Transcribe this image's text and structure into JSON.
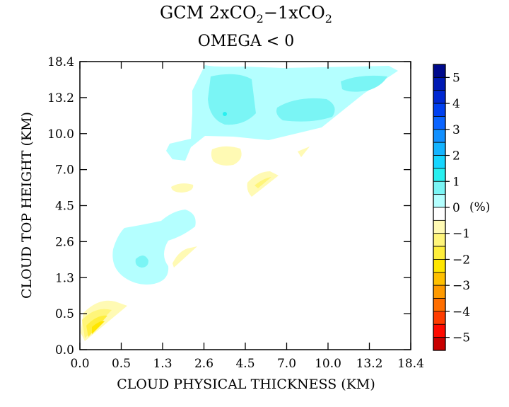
{
  "title_line1_main": "GCM 2xCO",
  "title_line1_sub1": "2",
  "title_line1_mid": "−1xCO",
  "title_line1_sub2": "2",
  "title_line2": "OMEGA < 0",
  "chart_data": {
    "type": "heatmap",
    "title": "GCM 2xCO2−1xCO2",
    "subtitle": "OMEGA < 0",
    "xlabel": "CLOUD PHYSICAL THICKNESS (KM)",
    "ylabel": "CLOUD TOP HEIGHT (KM)",
    "x_ticks": [
      "0.0",
      "0.5",
      "1.3",
      "2.6",
      "4.5",
      "7.0",
      "10.0",
      "13.2",
      "18.4"
    ],
    "y_ticks": [
      "0.0",
      "0.5",
      "1.3",
      "2.6",
      "4.5",
      "7.0",
      "10.0",
      "13.2",
      "18.4"
    ],
    "colorbar": {
      "unit": "(%)",
      "tick_labels": [
        "5",
        "4",
        "3",
        "2",
        "1",
        "0",
        "−1",
        "−2",
        "−3",
        "−4",
        "−5"
      ],
      "levels": [
        5,
        4.5,
        4,
        3.5,
        3,
        2.5,
        2,
        1.5,
        1,
        0.5,
        0,
        -0.5,
        -1,
        -1.5,
        -2,
        -2.5,
        -3,
        -3.5,
        -4,
        -4.5,
        -5
      ],
      "colors": [
        "#000a8c",
        "#001ab4",
        "#0028d2",
        "#0040f0",
        "#0a64ff",
        "#1290ff",
        "#14b4ff",
        "#16d6ff",
        "#28f0f0",
        "#7af5f5",
        "#b4ffff",
        "#ffffff",
        "#fffab4",
        "#fff57a",
        "#ffee3c",
        "#ffe600",
        "#ffc000",
        "#ff9a00",
        "#ff6e00",
        "#ff3c00",
        "#ff0a00",
        "#c80000"
      ]
    },
    "regions": [
      {
        "label": "upper cloud band",
        "value": 0.5,
        "color": "#b4ffff"
      },
      {
        "label": "upper-left cell",
        "value": 1.0,
        "color": "#7af5f5"
      },
      {
        "label": "upper-middle cell",
        "value": 1.0,
        "color": "#7af5f5"
      },
      {
        "label": "upper-right cell",
        "value": 1.0,
        "color": "#7af5f5"
      },
      {
        "label": "upper-left core",
        "value": 1.5,
        "color": "#28f0f0"
      },
      {
        "label": "mid-level arm",
        "value": 0.5,
        "color": "#b4ffff"
      },
      {
        "label": "lower-left band",
        "value": 0.5,
        "color": "#b4ffff"
      },
      {
        "label": "lower-left core",
        "value": 1.0,
        "color": "#7af5f5"
      },
      {
        "label": "mid small patch",
        "value": -0.5,
        "color": "#fffab4"
      },
      {
        "label": "small patch near 7.0 km",
        "value": -0.5,
        "color": "#fffab4"
      },
      {
        "label": "patch 10.0 km thickness",
        "value": -0.5,
        "color": "#fffab4"
      },
      {
        "label": "wedge near 4.5 km thickness",
        "value": -1.0,
        "color": "#fff57a"
      },
      {
        "label": "lower patch near 1.3 km",
        "value": -0.5,
        "color": "#fffab4"
      },
      {
        "label": "bottom-left corner",
        "value": -2.0,
        "color": "#ffe600"
      }
    ]
  }
}
